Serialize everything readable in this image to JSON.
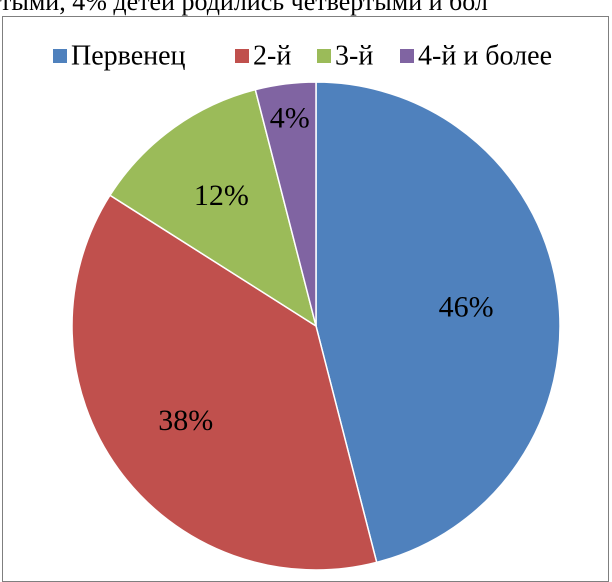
{
  "context_text": "тыми, 4% детей родились четвертыми и бол",
  "chart_data": {
    "type": "pie",
    "legend": "top",
    "slices": [
      {
        "label": "Первенец",
        "value": 46,
        "display": "46%",
        "color": "#4f81bd"
      },
      {
        "label": "2-й",
        "value": 38,
        "display": "38%",
        "color": "#c0504d"
      },
      {
        "label": "3-й",
        "value": 12,
        "display": "12%",
        "color": "#9bbb59"
      },
      {
        "label": "4-й и более",
        "value": 4,
        "display": "4%",
        "color": "#8064a2"
      }
    ]
  }
}
